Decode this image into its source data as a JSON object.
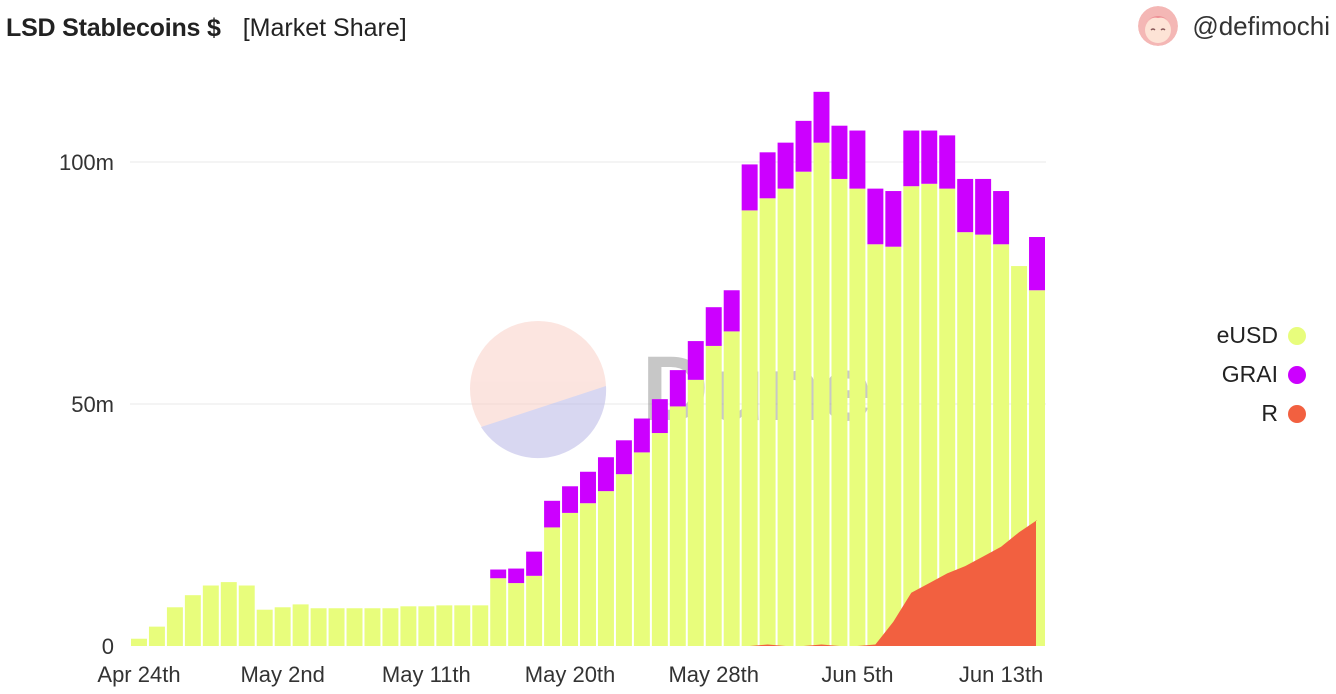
{
  "header": {
    "title": "LSD Stablecoins $",
    "subtitle": "[Market Share]"
  },
  "author": {
    "handle": "@defimochi"
  },
  "watermark": {
    "text": "Dune"
  },
  "chart_data": {
    "type": "bar",
    "stacked": true,
    "ylim": [
      0,
      120
    ],
    "yticks": [
      0,
      50,
      100
    ],
    "ytick_labels": [
      "0",
      "50m",
      "100m"
    ],
    "x_tick_labels": [
      "Apr 24th",
      "May 2nd",
      "May 11th",
      "May 20th",
      "May 28th",
      "Jun 5th",
      "Jun 13th"
    ],
    "x_tick_index": [
      0,
      8,
      16,
      24,
      32,
      40,
      48
    ],
    "grid": true,
    "legend_position": "right",
    "series": [
      {
        "name": "eUSD",
        "color": "#e8fd7c",
        "values": [
          1.5,
          4,
          8,
          10.5,
          12.5,
          13.2,
          12.5,
          7.5,
          8,
          8.6,
          7.8,
          7.8,
          7.8,
          7.8,
          7.8,
          8.2,
          8.2,
          8.4,
          8.4,
          8.4,
          14,
          13,
          14.5,
          24.5,
          27.5,
          29.5,
          32,
          35.5,
          40,
          44,
          49.5,
          55,
          62,
          65,
          90,
          92.5,
          94.5,
          98,
          104,
          96.5,
          94.5,
          83,
          82.5,
          95,
          95.5,
          94.5,
          85.5,
          85,
          83,
          78.5,
          73.5
        ]
      },
      {
        "name": "GRAI",
        "color": "#cc00ff",
        "values": [
          0,
          0,
          0,
          0,
          0,
          0,
          0,
          0,
          0,
          0,
          0,
          0,
          0,
          0,
          0,
          0,
          0,
          0,
          0,
          0,
          1.8,
          3,
          5,
          5.5,
          5.5,
          6.5,
          7,
          7,
          7,
          7,
          7.5,
          8,
          8,
          8.5,
          9.5,
          9.5,
          9.5,
          10.5,
          10.5,
          11,
          12,
          11.5,
          11.5,
          11.5,
          11,
          11,
          11,
          11.5,
          11,
          0,
          11
        ]
      },
      {
        "name": "R",
        "color": "#f26040",
        "values": [
          0,
          0,
          0,
          0,
          0,
          0,
          0,
          0,
          0,
          0,
          0,
          0,
          0,
          0,
          0,
          0,
          0,
          0,
          0,
          0,
          0,
          0,
          0,
          0,
          0,
          0,
          0,
          0,
          0,
          0,
          0,
          0,
          0,
          0,
          0,
          0.3,
          0,
          0,
          0.3,
          0,
          0,
          0.3,
          5,
          11,
          13,
          15,
          16.5,
          18.5,
          20.5,
          23.5,
          26
        ]
      }
    ]
  },
  "legend": [
    {
      "label": "eUSD",
      "color": "#e8fd7c"
    },
    {
      "label": "GRAI",
      "color": "#cc00ff"
    },
    {
      "label": "R",
      "color": "#f26040"
    }
  ]
}
